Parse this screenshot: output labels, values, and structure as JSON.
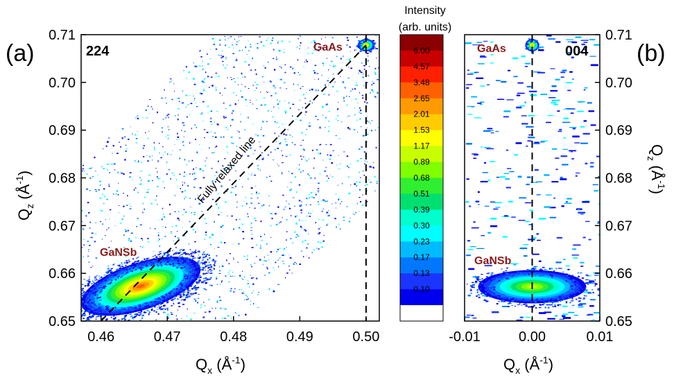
{
  "colorbar": {
    "title_line1": "Intensity",
    "title_line2": "(arb. units)",
    "levels": [
      "6.00",
      "4.57",
      "3.48",
      "2.65",
      "2.01",
      "1.53",
      "1.17",
      "0.89",
      "0.68",
      "0.51",
      "0.39",
      "0.30",
      "0.23",
      "0.17",
      "0.13",
      "0.10"
    ],
    "colors": [
      "#8b0000",
      "#c80000",
      "#ff2000",
      "#ff6000",
      "#ff9a00",
      "#ffcc00",
      "#ffff00",
      "#c8ff00",
      "#80ff00",
      "#30ee30",
      "#00e070",
      "#00ffcc",
      "#00ffff",
      "#00bbff",
      "#0077ff",
      "#1a35ff",
      "#0000ee",
      "#ffffff"
    ]
  },
  "chart_data": [
    {
      "type": "heatmap",
      "panel_letter": "(a)",
      "reflection": "224",
      "xlabel_main": "Q",
      "xlabel_sub": "x",
      "xlabel_unit": " (Å",
      "xlabel_exp": "-1",
      "xlabel_close": ")",
      "ylabel_main": "Q",
      "ylabel_sub": "z",
      "ylabel_unit": " (Å",
      "ylabel_exp": "-1",
      "ylabel_close": ")",
      "xlim": [
        0.457,
        0.502
      ],
      "ylim": [
        0.65,
        0.71
      ],
      "xticks": [
        "0.46",
        "0.47",
        "0.48",
        "0.49",
        "0.50"
      ],
      "yticks": [
        "0.65",
        "0.66",
        "0.67",
        "0.68",
        "0.69",
        "0.70",
        "0.71"
      ],
      "peaks": [
        {
          "label": "GaAs",
          "qx": 0.5,
          "qz": 0.7078,
          "peak_level": 4
        },
        {
          "label": "GaNSb",
          "qx": 0.466,
          "qz": 0.6573,
          "peak_level": 3
        }
      ],
      "annotation": "Fully relaxed line",
      "relaxed_line": {
        "from": [
          0.46,
          0.65
        ],
        "to": [
          0.5,
          0.7078
        ]
      },
      "vertical_line_qx": 0.5
    },
    {
      "type": "heatmap",
      "panel_letter": "(b)",
      "reflection": "004",
      "xlabel_main": "Q",
      "xlabel_sub": "x",
      "xlabel_unit": " (Å",
      "xlabel_exp": "-1",
      "xlabel_close": ")",
      "ylabel_main": "Q",
      "ylabel_sub": "z",
      "ylabel_unit": " (Å",
      "ylabel_exp": "-1",
      "ylabel_close": ")",
      "xlim": [
        -0.01,
        0.01
      ],
      "ylim": [
        0.65,
        0.71
      ],
      "xticks": [
        "-0.01",
        "0.00",
        "0.01"
      ],
      "yticks": [
        "0.65",
        "0.66",
        "0.67",
        "0.68",
        "0.69",
        "0.70",
        "0.71"
      ],
      "peaks": [
        {
          "label": "GaAs",
          "qx": 0.0,
          "qz": 0.7078,
          "peak_level": 4
        },
        {
          "label": "GaNSb",
          "qx": 0.0,
          "qz": 0.6572,
          "peak_level": 7
        }
      ],
      "vertical_line_qx": 0.0
    }
  ]
}
